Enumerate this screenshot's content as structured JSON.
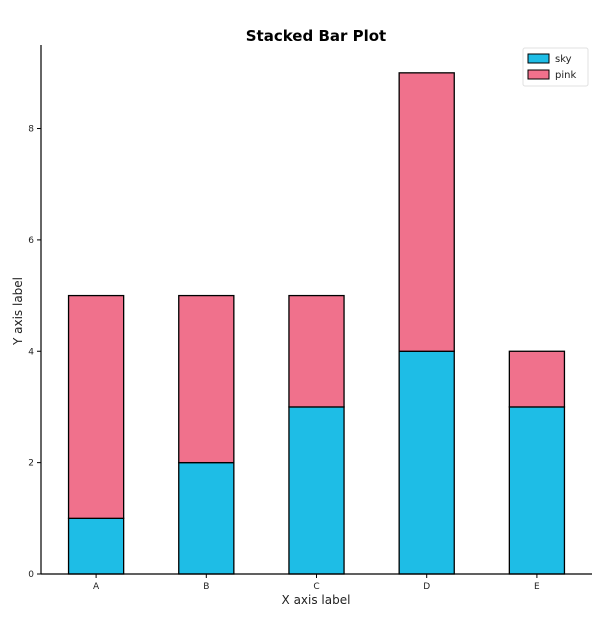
{
  "chart_data": {
    "type": "bar",
    "stacked": true,
    "title": "Stacked Bar Plot",
    "xlabel": "X axis label",
    "ylabel": "Y axis label",
    "categories": [
      "A",
      "B",
      "C",
      "D",
      "E"
    ],
    "series": [
      {
        "name": "sky",
        "color": "#1ebde6",
        "values": [
          1,
          2,
          3,
          4,
          3
        ]
      },
      {
        "name": "pink",
        "color": "#f0718c",
        "values": [
          4,
          3,
          2,
          5,
          1
        ]
      }
    ],
    "ylim": [
      0,
      9.5
    ],
    "yticks": [
      0,
      2,
      4,
      6,
      8
    ],
    "legend": "top-right",
    "grid": false
  }
}
